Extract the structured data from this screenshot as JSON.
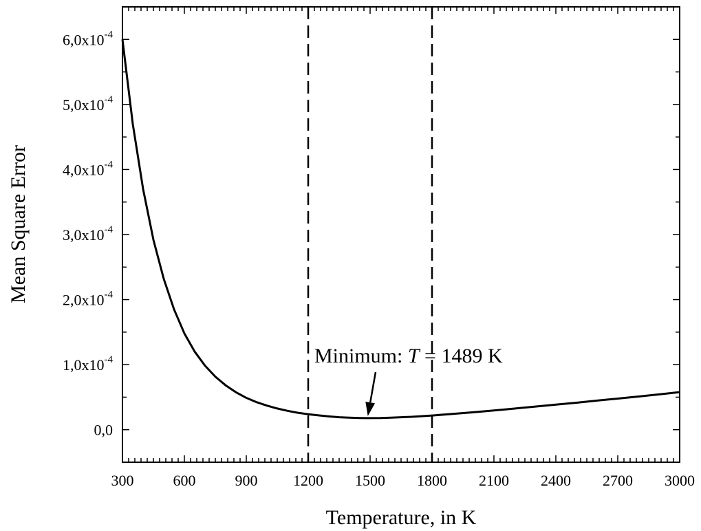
{
  "chart_data": {
    "type": "line",
    "title": "",
    "xlabel": "Temperature, in K",
    "ylabel": "Mean Square Error",
    "xlim": [
      300,
      3000
    ],
    "ylim": [
      -5e-05,
      0.00065
    ],
    "grid": false,
    "x_ticks": [
      {
        "value": 300,
        "label": "300"
      },
      {
        "value": 600,
        "label": "600"
      },
      {
        "value": 900,
        "label": "900"
      },
      {
        "value": 1200,
        "label": "1200"
      },
      {
        "value": 1500,
        "label": "1500"
      },
      {
        "value": 1800,
        "label": "1800"
      },
      {
        "value": 2100,
        "label": "2100"
      },
      {
        "value": 2400,
        "label": "2400"
      },
      {
        "value": 2700,
        "label": "2700"
      },
      {
        "value": 3000,
        "label": "3000"
      }
    ],
    "y_ticks": [
      {
        "value": 0,
        "label": "0,0",
        "exp": ""
      },
      {
        "value": 0.0001,
        "label": "1,0x10",
        "exp": "-4"
      },
      {
        "value": 0.0002,
        "label": "2,0x10",
        "exp": "-4"
      },
      {
        "value": 0.0003,
        "label": "3,0x10",
        "exp": "-4"
      },
      {
        "value": 0.0004,
        "label": "4,0x10",
        "exp": "-4"
      },
      {
        "value": 0.0005,
        "label": "5,0x10",
        "exp": "-4"
      },
      {
        "value": 0.0006,
        "label": "6,0x10",
        "exp": "-4"
      }
    ],
    "series": [
      {
        "x": [
          300,
          350,
          400,
          450,
          500,
          550,
          600,
          650,
          700,
          750,
          800,
          850,
          900,
          950,
          1000,
          1050,
          1100,
          1150,
          1200,
          1250,
          1300,
          1350,
          1400,
          1450,
          1489,
          1550,
          1600,
          1700,
          1800,
          1900,
          2000,
          2100,
          2200,
          2300,
          2400,
          2500,
          2600,
          2700,
          2800,
          2900,
          3000
        ],
        "y": [
          0.0006,
          0.00047,
          0.00037,
          0.000292,
          0.000232,
          0.000185,
          0.000148,
          0.00012,
          9.85e-05,
          8.15e-05,
          6.82e-05,
          5.75e-05,
          4.9e-05,
          4.23e-05,
          3.7e-05,
          3.26e-05,
          2.9e-05,
          2.6e-05,
          2.38e-05,
          2.2e-05,
          2.04e-05,
          1.92e-05,
          1.84e-05,
          1.8e-05,
          1.78e-05,
          1.8e-05,
          1.85e-05,
          1.98e-05,
          2.18e-05,
          2.42e-05,
          2.68e-05,
          2.96e-05,
          3.25e-05,
          3.55e-05,
          3.85e-05,
          4.15e-05,
          4.47e-05,
          4.78e-05,
          5.1e-05,
          5.43e-05,
          5.77e-05
        ]
      }
    ],
    "reference_lines": [
      {
        "axis": "x",
        "value": 1200,
        "style": "dashed"
      },
      {
        "axis": "x",
        "value": 1800,
        "style": "dashed"
      }
    ],
    "annotation": {
      "prefix": "Minimum: ",
      "symbol": "T",
      "suffix": " = 1489 K",
      "point": {
        "x": 1489,
        "y": 1.78e-05
      }
    }
  }
}
